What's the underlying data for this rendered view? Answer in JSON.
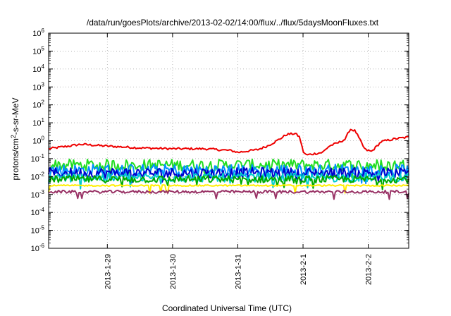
{
  "chart_data": {
    "type": "line",
    "title": "/data/run/goesPlots/archive/2013-02-02/14:00/flux/../flux/5daysMoonFluxes.txt",
    "xlabel": "Coordinated Universal Time (UTC)",
    "ylabel_parts": {
      "pre": "protons/cm",
      "sup": "2",
      "post": "-s-sr-MeV"
    },
    "y_scale": "log",
    "ylim_exponents": [
      -6,
      6
    ],
    "y_tick_exponents": [
      -6,
      -5,
      -4,
      -3,
      -2,
      -1,
      0,
      1,
      2,
      3,
      4,
      5,
      6
    ],
    "xlim_days": [
      28.1,
      33.62
    ],
    "x_ticks": [
      {
        "day": 29,
        "label": "2013-1-29"
      },
      {
        "day": 30,
        "label": "2013-1-30"
      },
      {
        "day": 31,
        "label": "2013-1-31"
      },
      {
        "day": 32,
        "label": "2013-2-1"
      },
      {
        "day": 33,
        "label": "2013-2-2"
      }
    ],
    "grid": true,
    "series": [
      {
        "color": "#ee0000",
        "base_log": -0.3,
        "noise": 0.06,
        "profile": [
          [
            28.1,
            -0.45
          ],
          [
            28.6,
            -0.2
          ],
          [
            29.0,
            -0.3
          ],
          [
            29.5,
            -0.4
          ],
          [
            30.0,
            -0.45
          ],
          [
            30.5,
            -0.45
          ],
          [
            30.9,
            -0.55
          ],
          [
            31.0,
            -0.65
          ],
          [
            31.3,
            -0.5
          ],
          [
            31.45,
            -0.3
          ],
          [
            31.6,
            0.0
          ],
          [
            31.75,
            0.35
          ],
          [
            31.88,
            0.4
          ],
          [
            31.95,
            0.2
          ],
          [
            32.0,
            -0.6
          ],
          [
            32.05,
            -0.8
          ],
          [
            32.3,
            -0.65
          ],
          [
            32.4,
            -0.3
          ],
          [
            32.55,
            -0.1
          ],
          [
            32.65,
            0.1
          ],
          [
            32.72,
            0.65
          ],
          [
            32.8,
            0.55
          ],
          [
            32.95,
            -0.5
          ],
          [
            33.05,
            -0.6
          ],
          [
            33.2,
            -0.05
          ],
          [
            33.4,
            0.1
          ],
          [
            33.62,
            0.2
          ]
        ]
      },
      {
        "color": "#22dd22",
        "base_log": -1.35,
        "noise": 0.32
      },
      {
        "color": "#0090ff",
        "base_log": -1.65,
        "noise": 0.35
      },
      {
        "color": "#0000cc",
        "base_log": -1.8,
        "noise": 0.3
      },
      {
        "color": "#00cccc",
        "base_log": -2.05,
        "noise": 0.25
      },
      {
        "color": "#00aa00",
        "base_log": -2.15,
        "noise": 0.2
      },
      {
        "color": "#ffee00",
        "base_log": -2.5,
        "noise": 0.04
      },
      {
        "color": "#993366",
        "base_log": -2.85,
        "noise": 0.08
      }
    ]
  }
}
